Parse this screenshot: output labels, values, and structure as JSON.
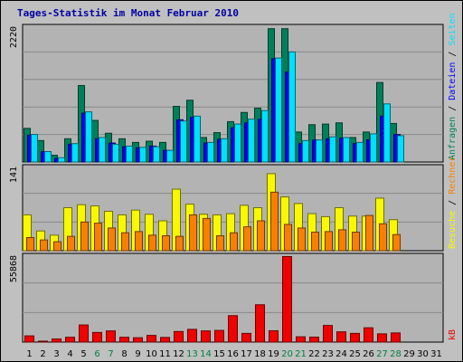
{
  "title": "Tages-Statistik im Monat Februar 2010",
  "colors": {
    "background": "#c0c0c0",
    "panel": "#b3b3b3",
    "grid": "#888888",
    "title": "#0000a0",
    "anfragen": "#00805a",
    "dateien": "#0000ff",
    "seiten": "#00e0ff",
    "besuche": "#f8f800",
    "rechner": "#f88000",
    "kb": "#f00000",
    "weekend_day": "#008040",
    "weekday": "#000000"
  },
  "chart_data": [
    {
      "type": "bar",
      "panel": "top",
      "ymax_label": "2220",
      "ylim": [
        0,
        2220
      ],
      "categories": [
        "1",
        "2",
        "3",
        "4",
        "5",
        "6",
        "7",
        "8",
        "9",
        "10",
        "11",
        "12",
        "13",
        "14",
        "15",
        "16",
        "17",
        "18",
        "19",
        "20",
        "21",
        "22",
        "23",
        "24",
        "25",
        "26",
        "27",
        "28",
        "29",
        "30",
        "31"
      ],
      "weekend_days": [
        "6",
        "7",
        "13",
        "14",
        "20",
        "21",
        "27",
        "28"
      ],
      "series": [
        {
          "name": "Anfragen",
          "color": "#00805a",
          "values": [
            550,
            350,
            110,
            380,
            1250,
            680,
            470,
            380,
            320,
            340,
            320,
            910,
            1010,
            400,
            480,
            660,
            810,
            880,
            2180,
            2180,
            490,
            610,
            620,
            640,
            400,
            490,
            1300,
            630,
            0,
            0,
            0
          ]
        },
        {
          "name": "Dateien",
          "color": "#0000ff",
          "values": [
            440,
            170,
            60,
            290,
            800,
            380,
            310,
            250,
            230,
            260,
            190,
            690,
            730,
            310,
            370,
            560,
            640,
            700,
            1690,
            1470,
            300,
            360,
            380,
            390,
            300,
            360,
            750,
            450,
            0,
            0,
            0
          ]
        },
        {
          "name": "Seiten",
          "color": "#00e0ff",
          "values": [
            450,
            170,
            70,
            300,
            820,
            400,
            290,
            260,
            240,
            250,
            190,
            670,
            750,
            320,
            380,
            620,
            700,
            840,
            1700,
            1800,
            350,
            360,
            410,
            400,
            320,
            460,
            950,
            430,
            0,
            0,
            0
          ]
        }
      ],
      "side_label": [
        {
          "text": "Anfragen",
          "color": "#00805a"
        },
        {
          "text": "Dateien",
          "color": "#0000ff"
        },
        {
          "text": "Seiten",
          "color": "#00e0ff"
        }
      ]
    },
    {
      "type": "bar",
      "panel": "middle",
      "ymax_label": "141",
      "ylim": [
        0,
        141
      ],
      "series": [
        {
          "name": "Besuche",
          "color": "#f8f800",
          "values": [
            60,
            33,
            26,
            72,
            77,
            75,
            66,
            60,
            68,
            61,
            50,
            103,
            78,
            61,
            60,
            62,
            76,
            72,
            129,
            90,
            79,
            62,
            57,
            72,
            58,
            58,
            88,
            52,
            0,
            0,
            0
          ]
        },
        {
          "name": "Rechner",
          "color": "#f88000",
          "values": [
            22,
            18,
            15,
            24,
            48,
            46,
            38,
            30,
            32,
            26,
            25,
            24,
            60,
            54,
            25,
            30,
            40,
            50,
            98,
            44,
            38,
            31,
            32,
            35,
            31,
            59,
            45,
            27,
            0,
            0,
            0
          ]
        }
      ],
      "side_label": [
        {
          "text": "Besuche",
          "color": "#f8f800"
        },
        {
          "text": "Rechner",
          "color": "#f88000"
        }
      ]
    },
    {
      "type": "bar",
      "panel": "bottom",
      "ymax_label": "55868",
      "ylim": [
        0,
        55868
      ],
      "series": [
        {
          "name": "kB",
          "color": "#f00000",
          "values": [
            4000,
            600,
            2000,
            3100,
            11000,
            6200,
            7200,
            3100,
            2800,
            4300,
            3000,
            6800,
            8200,
            7200,
            7500,
            17000,
            5600,
            24000,
            7300,
            55000,
            3400,
            3200,
            10700,
            6600,
            5600,
            9200,
            5300,
            5900,
            0,
            0,
            0
          ]
        }
      ],
      "side_label": [
        {
          "text": "kB",
          "color": "#f00000"
        }
      ]
    }
  ]
}
